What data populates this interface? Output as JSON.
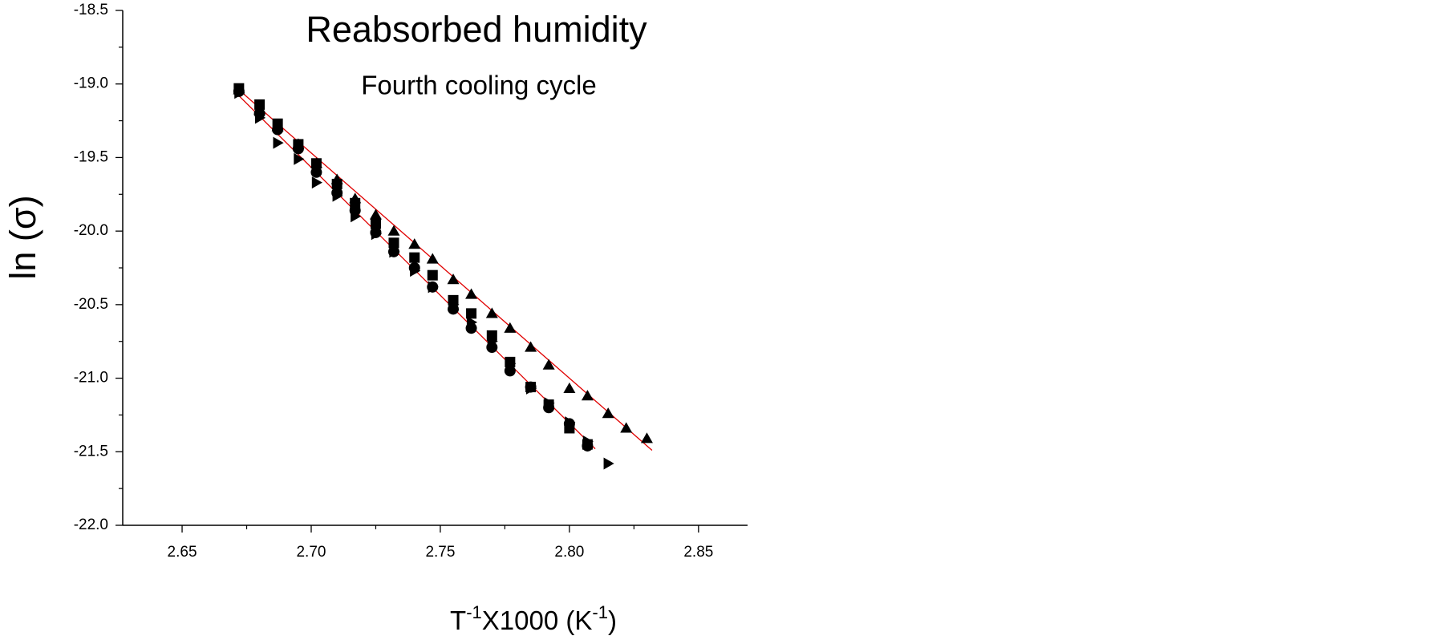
{
  "chart_data": {
    "type": "scatter",
    "title": "Reabsorbed humidity",
    "subtitle": "Fourth cooling cycle",
    "y_label": "ln (σ)",
    "x_label": [
      "T",
      "-1",
      "X1000 (K",
      "-1",
      ")"
    ],
    "xlim": [
      2.627,
      2.869
    ],
    "ylim": [
      -22.0,
      -18.5
    ],
    "xticks": [
      2.65,
      {
        "value": 2.7,
        "label": "2.70"
      },
      2.75,
      {
        "value": 2.8,
        "label": "2.80"
      },
      2.85
    ],
    "yticks": [
      -18.5,
      {
        "value": -19,
        "label": "-19.0"
      },
      -19.5,
      {
        "value": -20,
        "label": "-20.0"
      },
      -20.5,
      {
        "value": -21,
        "label": "-21.0"
      },
      -21.5,
      {
        "value": -22,
        "label": "-22.0"
      }
    ],
    "series": [
      {
        "marker": "square",
        "color": "#000000",
        "x": [
          2.672,
          2.68,
          2.687,
          2.695,
          2.702,
          2.71,
          2.717,
          2.725,
          2.732,
          2.74,
          2.747,
          2.755,
          2.762,
          2.77,
          2.777,
          2.785,
          2.792,
          2.8,
          2.807
        ],
        "values": [
          -19.03,
          -19.14,
          -19.27,
          -19.41,
          -19.54,
          -19.68,
          -19.81,
          -19.95,
          -20.08,
          -20.18,
          -20.3,
          -20.47,
          -20.56,
          -20.71,
          -20.89,
          -21.06,
          -21.18,
          -21.34,
          -21.45
        ]
      },
      {
        "marker": "circle",
        "color": "#000000",
        "x": [
          2.672,
          2.68,
          2.687,
          2.695,
          2.702,
          2.71,
          2.717,
          2.725,
          2.732,
          2.74,
          2.747,
          2.755,
          2.762,
          2.77,
          2.777,
          2.785,
          2.792,
          2.8,
          2.807
        ],
        "values": [
          -19.05,
          -19.2,
          -19.31,
          -19.44,
          -19.6,
          -19.74,
          -19.86,
          -20.01,
          -20.14,
          -20.25,
          -20.38,
          -20.53,
          -20.66,
          -20.79,
          -20.95,
          -21.06,
          -21.2,
          -21.31,
          -21.46
        ]
      },
      {
        "marker": "triangle-up",
        "color": "#000000",
        "x": [
          2.672,
          2.68,
          2.687,
          2.695,
          2.702,
          2.71,
          2.717,
          2.725,
          2.732,
          2.74,
          2.747,
          2.755,
          2.762,
          2.77,
          2.777,
          2.785,
          2.792,
          2.8,
          2.807,
          2.815,
          2.822,
          2.83
        ],
        "values": [
          -19.04,
          -19.18,
          -19.29,
          -19.41,
          -19.54,
          -19.65,
          -19.78,
          -19.89,
          -20.0,
          -20.09,
          -20.19,
          -20.33,
          -20.43,
          -20.56,
          -20.66,
          -20.79,
          -20.91,
          -21.07,
          -21.12,
          -21.24,
          -21.34,
          -21.41
        ]
      },
      {
        "marker": "triangle-right",
        "color": "#000000",
        "x": [
          2.672,
          2.68,
          2.687,
          2.695,
          2.702,
          2.71,
          2.717,
          2.725,
          2.732,
          2.74,
          2.747,
          2.755,
          2.762,
          2.77,
          2.777,
          2.785,
          2.792,
          2.8,
          2.807,
          2.815
        ],
        "values": [
          -19.06,
          -19.23,
          -19.4,
          -19.51,
          -19.67,
          -19.76,
          -19.9,
          -20.02,
          -20.14,
          -20.27,
          -20.38,
          -20.5,
          -20.62,
          -20.75,
          -20.9,
          -21.07,
          -21.17,
          -21.3,
          -21.43,
          -21.58
        ]
      }
    ],
    "fit_lines": [
      {
        "color": "#e00000",
        "x": [
          2.672,
          2.832
        ],
        "values": [
          -19.04,
          -21.49
        ]
      },
      {
        "color": "#e00000",
        "x": [
          2.672,
          2.81
        ],
        "values": [
          -19.08,
          -21.48
        ]
      }
    ]
  }
}
